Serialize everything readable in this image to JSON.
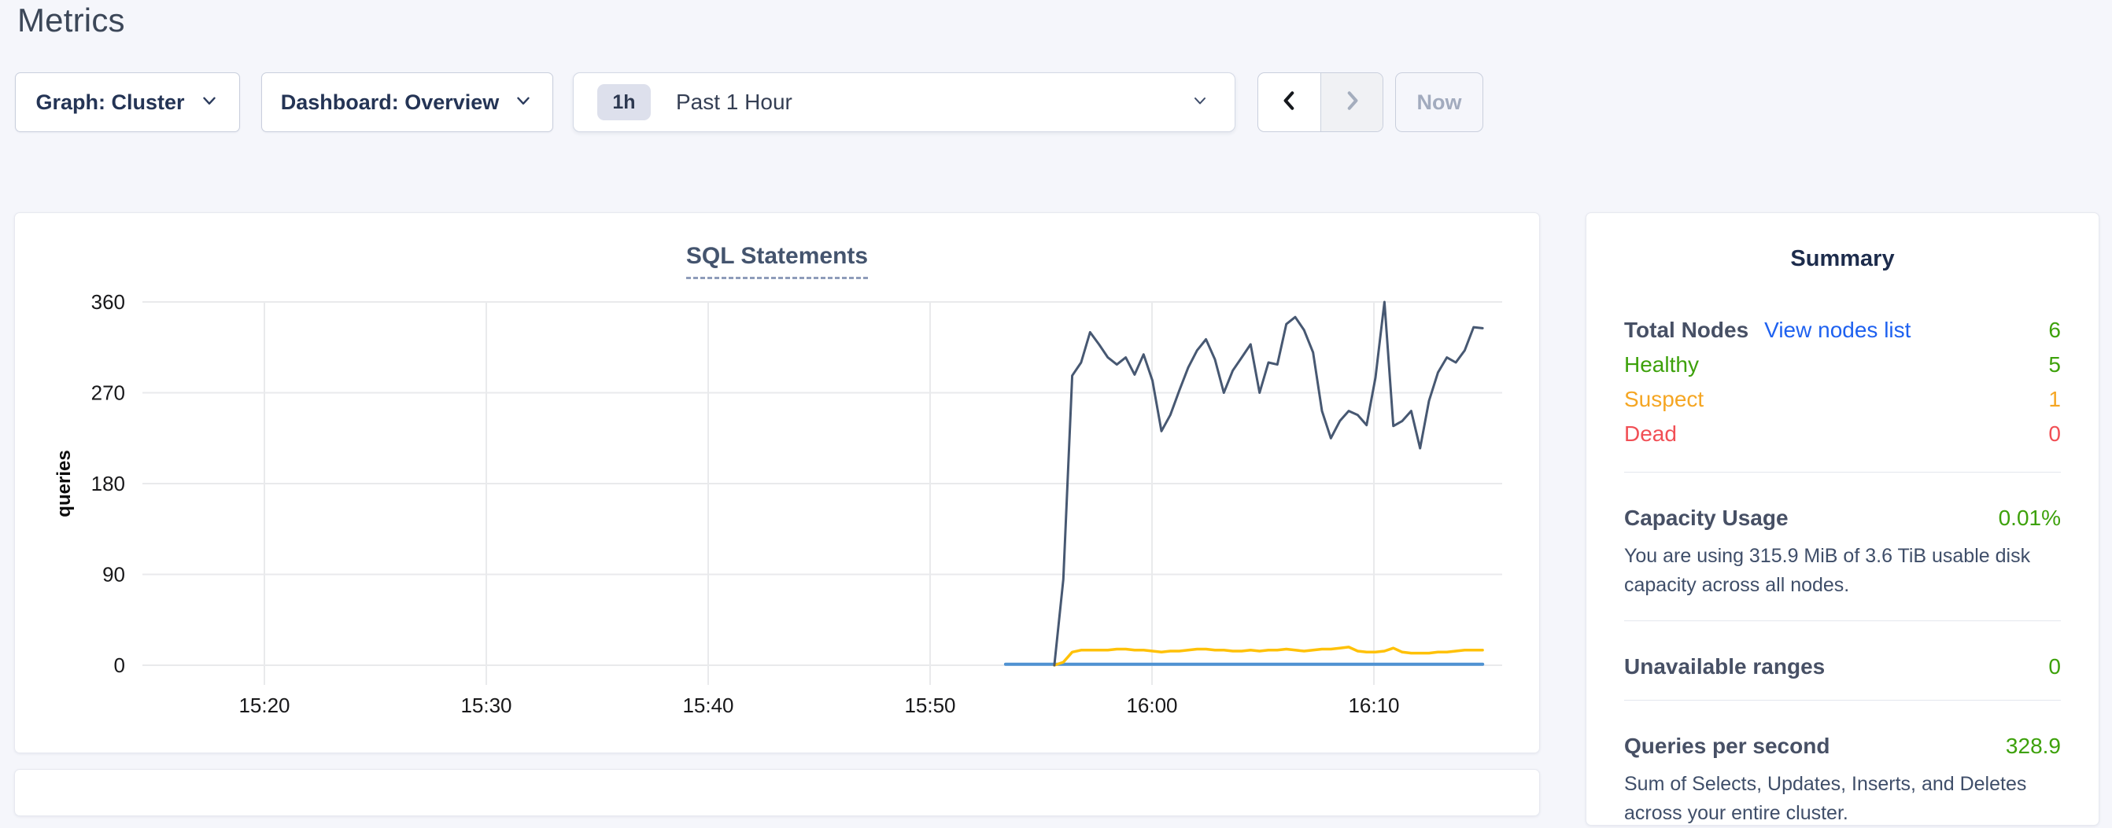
{
  "page": {
    "title": "Metrics"
  },
  "controls": {
    "graph_dropdown": {
      "label": "Graph: Cluster"
    },
    "dashboard_dropdown": {
      "label": "Dashboard: Overview"
    },
    "time_selector": {
      "badge": "1h",
      "label": "Past 1 Hour"
    },
    "now_button": {
      "label": "Now"
    },
    "icons": {
      "dropdown": "chevron-down",
      "previous": "chevron-left",
      "next": "chevron-right"
    }
  },
  "chart_data": {
    "type": "line",
    "title": "SQL Statements",
    "xlabel": "",
    "ylabel": "queries",
    "ylim": [
      0,
      360
    ],
    "yticks": [
      0,
      90,
      180,
      270,
      360
    ],
    "xticks": [
      {
        "t": 20,
        "label": "15:20"
      },
      {
        "t": 30,
        "label": "15:30"
      },
      {
        "t": 40,
        "label": "15:40"
      },
      {
        "t": 50,
        "label": "15:50"
      },
      {
        "t": 60,
        "label": "16:00"
      },
      {
        "t": 70,
        "label": "16:10"
      }
    ],
    "x_domain_minutes_after_1500": [
      14.5,
      75.6
    ],
    "grid": true,
    "legend_position": "none",
    "series": [
      {
        "name": "flat-blue-series",
        "color": "#4f92d2",
        "stroke_width": 4,
        "points": [
          [
            53.4,
            1
          ],
          [
            74.9,
            1
          ]
        ]
      },
      {
        "name": "yellow-series",
        "color": "#ffc107",
        "stroke_width": 3.5,
        "t0": 55.6,
        "dt": 0.402,
        "values": [
          0,
          3,
          13,
          15,
          15,
          15,
          15,
          16,
          16,
          15,
          15,
          14,
          13,
          14,
          14,
          15,
          16,
          16,
          15,
          15,
          14,
          14,
          15,
          14,
          15,
          15,
          16,
          15,
          14,
          15,
          16,
          16,
          17,
          18,
          14,
          13,
          13,
          14,
          17,
          13,
          12,
          12,
          12,
          13,
          13,
          14,
          15,
          15,
          15
        ]
      },
      {
        "name": "navy-series",
        "color": "#475872",
        "stroke_width": 3,
        "t0": 55.6,
        "dt": 0.402,
        "values": [
          0,
          85,
          287,
          300,
          330,
          318,
          305,
          298,
          305,
          288,
          308,
          282,
          232,
          248,
          272,
          295,
          312,
          323,
          303,
          270,
          292,
          305,
          318,
          270,
          300,
          298,
          338,
          345,
          332,
          310,
          252,
          225,
          242,
          252,
          248,
          238,
          285,
          360,
          237,
          242,
          252,
          215,
          262,
          290,
          305,
          300,
          312,
          335,
          334
        ]
      }
    ]
  },
  "summary": {
    "title": "Summary",
    "nodes": {
      "label": "Total Nodes",
      "link": "View nodes list",
      "value": "6",
      "rows": [
        {
          "label": "Healthy",
          "value": "5",
          "status": "healthy"
        },
        {
          "label": "Suspect",
          "value": "1",
          "status": "suspect"
        },
        {
          "label": "Dead",
          "value": "0",
          "status": "dead"
        }
      ]
    },
    "capacity": {
      "label": "Capacity Usage",
      "value": "0.01%",
      "description": "You are using 315.9 MiB of 3.6 TiB usable disk capacity across all nodes."
    },
    "unavailable_ranges": {
      "label": "Unavailable ranges",
      "value": "0"
    },
    "qps": {
      "label": "Queries per second",
      "value": "328.9",
      "description": "Sum of Selects, Updates, Inserts, and Deletes across your entire cluster."
    }
  },
  "colors": {
    "green": "#3da10b",
    "orange": "#f5a623",
    "red": "#f14f55",
    "link_blue": "#1e61f0",
    "navy_text": "#475065"
  }
}
